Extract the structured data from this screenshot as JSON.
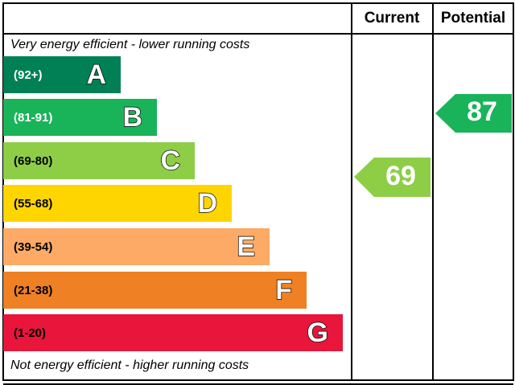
{
  "header": {
    "current": "Current",
    "potential": "Potential"
  },
  "top_note": "Very energy efficient - lower running costs",
  "bottom_note": "Not energy efficient - higher running costs",
  "bands": [
    {
      "range": "(92+)",
      "letter": "A"
    },
    {
      "range": "(81-91)",
      "letter": "B"
    },
    {
      "range": "(69-80)",
      "letter": "C"
    },
    {
      "range": "(55-68)",
      "letter": "D"
    },
    {
      "range": "(39-54)",
      "letter": "E"
    },
    {
      "range": "(21-38)",
      "letter": "F"
    },
    {
      "range": "(1-20)",
      "letter": "G"
    }
  ],
  "current": 69,
  "potential": 87
}
